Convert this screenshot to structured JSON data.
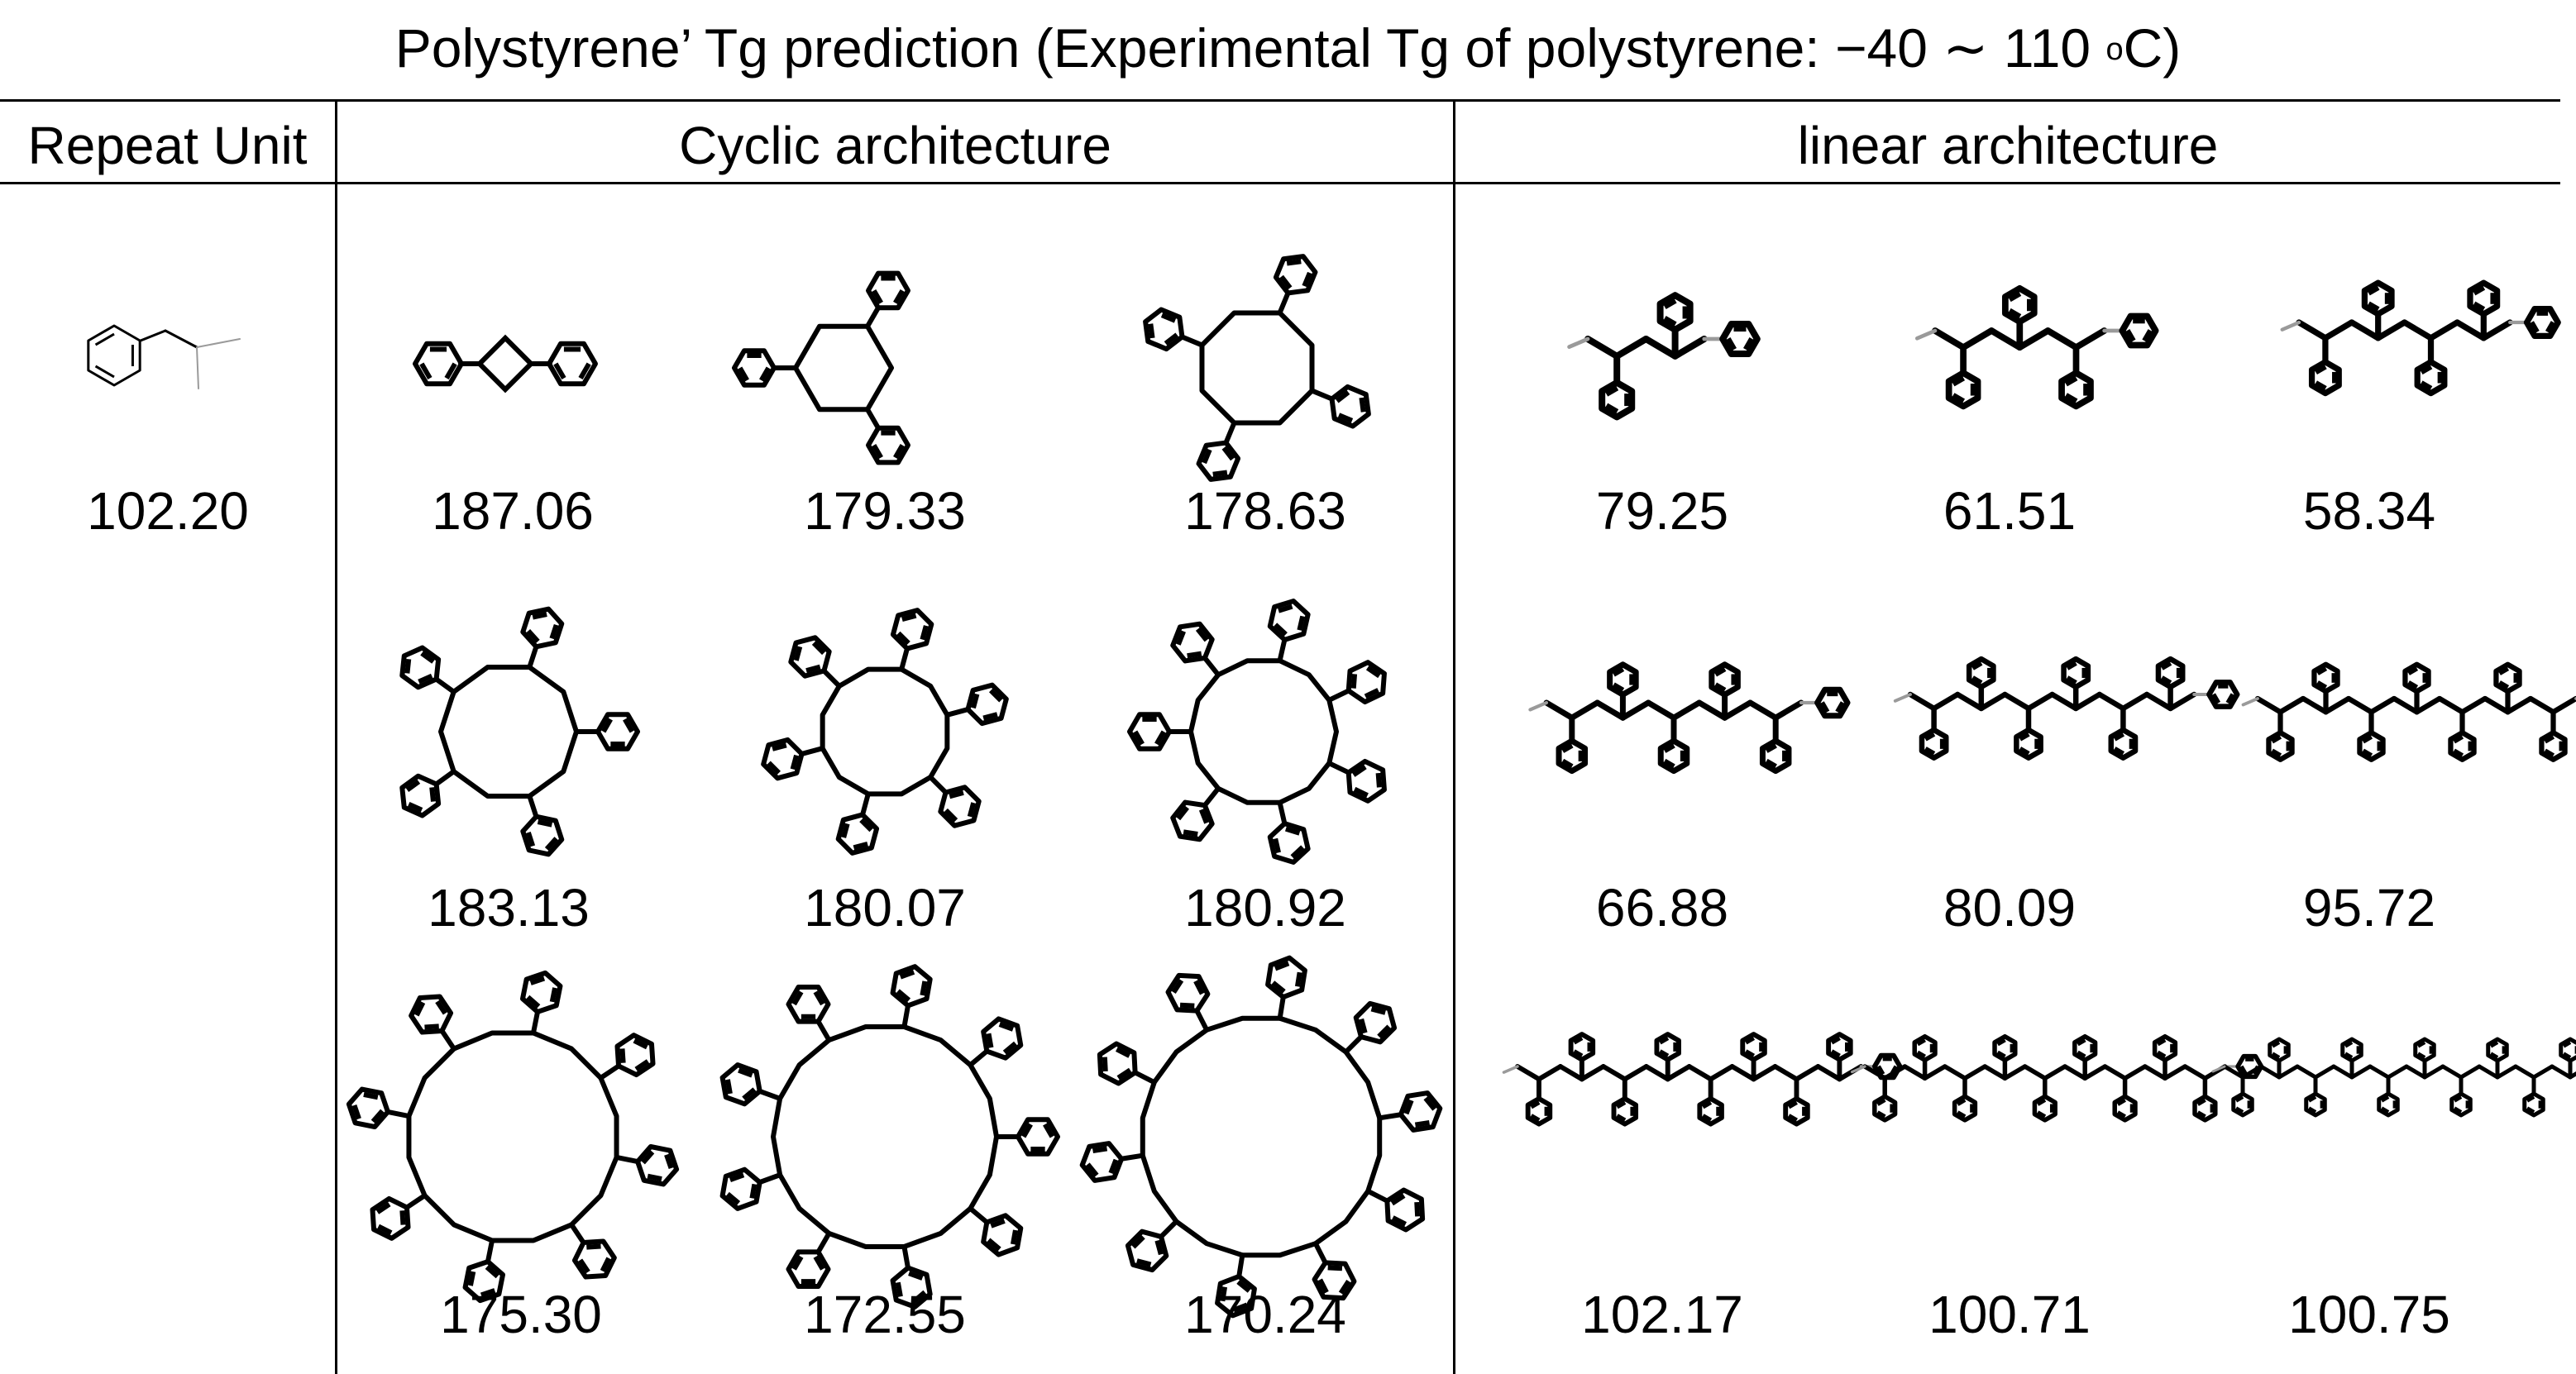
{
  "title": "Polystyrene’ Tg prediction (Experimental Tg of polystyrene: −40 ∼ 110 °C)",
  "title_parts": {
    "main": "Polystyrene’ Tg prediction (Experimental Tg of polystyrene: −40 ∼ 110 ",
    "sup": "o",
    "end": "C)"
  },
  "headers": {
    "repeat_unit": "Repeat Unit",
    "cyclic": "Cyclic architecture",
    "linear": "linear architecture"
  },
  "repeat_unit_value": "102.20",
  "cyclic_values": [
    [
      "187.06",
      "179.33",
      "178.63"
    ],
    [
      "183.13",
      "180.07",
      "180.92"
    ],
    [
      "175.30",
      "172.55",
      "170.24"
    ]
  ],
  "linear_values": [
    [
      "79.25",
      "61.51",
      "58.34"
    ],
    [
      "66.88",
      "80.09",
      "95.72"
    ],
    [
      "102.17",
      "100.71",
      "100.75"
    ]
  ],
  "structures": {
    "repeat_unit": 1,
    "cyclic_units": [
      [
        2,
        3,
        4
      ],
      [
        5,
        6,
        7
      ],
      [
        8,
        9,
        10
      ]
    ],
    "linear_units": [
      [
        2,
        3,
        4
      ],
      [
        5,
        6,
        7
      ],
      [
        8,
        9,
        10
      ]
    ]
  },
  "colors": {
    "line": "#000000",
    "bond": "#000000",
    "end_group": "#9a9a9a"
  }
}
